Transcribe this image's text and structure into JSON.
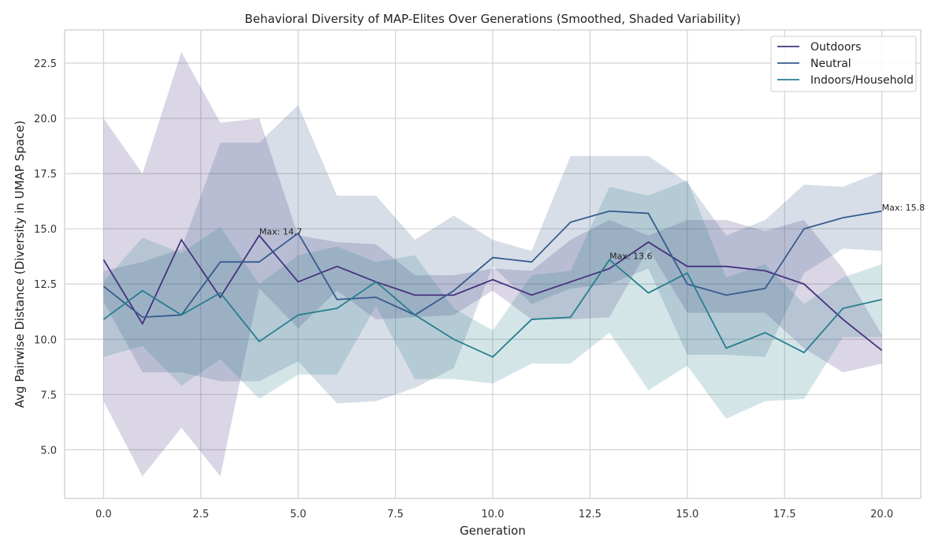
{
  "chart_data": {
    "type": "line",
    "title": "Behavioral Diversity of MAP-Elites Over Generations (Smoothed, Shaded Variability)",
    "xlabel": "Generation",
    "ylabel": "Avg Pairwise Distance (Diversity in UMAP Space)",
    "xlim": [
      -1.0,
      21.0
    ],
    "ylim": [
      2.8,
      24.0
    ],
    "xticks": [
      0.0,
      2.5,
      5.0,
      7.5,
      10.0,
      12.5,
      15.0,
      17.5,
      20.0
    ],
    "xtick_labels": [
      "0.0",
      "2.5",
      "5.0",
      "7.5",
      "10.0",
      "12.5",
      "15.0",
      "17.5",
      "20.0"
    ],
    "yticks": [
      5.0,
      7.5,
      10.0,
      12.5,
      15.0,
      17.5,
      20.0,
      22.5
    ],
    "ytick_labels": [
      "5.0",
      "7.5",
      "10.0",
      "12.5",
      "15.0",
      "17.5",
      "20.0",
      "22.5"
    ],
    "grid": true,
    "legend_position": "top-right",
    "x": [
      0,
      1,
      2,
      3,
      4,
      5,
      6,
      7,
      8,
      9,
      10,
      11,
      12,
      13,
      14,
      15,
      16,
      17,
      18,
      19,
      20
    ],
    "series": [
      {
        "name": "Outdoors",
        "color": "#46327e",
        "values": [
          13.6,
          10.7,
          14.5,
          11.9,
          14.7,
          12.6,
          13.3,
          12.6,
          12.0,
          12.0,
          12.7,
          12.0,
          12.6,
          13.2,
          14.4,
          13.3,
          13.3,
          13.1,
          12.5,
          10.9,
          9.5
        ],
        "upper": [
          20.0,
          17.5,
          23.0,
          19.8,
          20.0,
          14.7,
          14.4,
          14.3,
          12.9,
          12.9,
          13.2,
          13.1,
          14.5,
          15.4,
          14.7,
          15.4,
          15.4,
          14.9,
          15.4,
          13.2,
          10.2
        ],
        "lower": [
          7.2,
          3.8,
          6.0,
          3.8,
          12.3,
          10.5,
          12.2,
          10.9,
          11.0,
          11.1,
          12.2,
          10.9,
          10.9,
          11.0,
          14.1,
          11.2,
          11.2,
          11.2,
          9.6,
          8.5,
          8.9
        ]
      },
      {
        "name": "Neutral",
        "color": "#365c8d",
        "values": [
          12.4,
          11.0,
          11.1,
          13.5,
          13.5,
          14.8,
          11.8,
          11.9,
          11.1,
          12.2,
          13.7,
          13.5,
          15.3,
          15.8,
          15.7,
          12.5,
          12.0,
          12.3,
          15.0,
          15.5,
          15.8
        ],
        "upper": [
          13.1,
          13.5,
          14.1,
          18.9,
          18.9,
          20.6,
          16.5,
          16.5,
          14.5,
          15.6,
          14.5,
          14.0,
          18.3,
          18.3,
          18.3,
          17.1,
          14.7,
          15.4,
          17.0,
          16.9,
          17.6
        ],
        "lower": [
          11.7,
          8.5,
          8.5,
          8.1,
          8.1,
          9.0,
          7.1,
          7.2,
          7.8,
          8.7,
          13.3,
          11.6,
          12.3,
          12.5,
          13.2,
          9.3,
          9.3,
          9.2,
          13.0,
          14.1,
          14.0
        ]
      },
      {
        "name": "Indoors/Household",
        "color": "#277f8e",
        "values": [
          10.9,
          12.2,
          11.1,
          12.1,
          9.9,
          11.1,
          11.4,
          12.6,
          11.1,
          10.0,
          9.2,
          10.9,
          11.0,
          13.6,
          12.1,
          13.0,
          9.6,
          10.3,
          9.4,
          11.4,
          11.8
        ],
        "upper": [
          12.6,
          14.6,
          13.9,
          15.1,
          12.5,
          13.8,
          14.2,
          13.5,
          13.8,
          11.4,
          10.4,
          12.9,
          13.1,
          16.9,
          16.5,
          17.2,
          12.8,
          13.4,
          11.6,
          12.8,
          13.4
        ],
        "lower": [
          9.2,
          9.7,
          7.9,
          9.1,
          7.3,
          8.4,
          8.4,
          11.5,
          8.2,
          8.2,
          8.0,
          8.9,
          8.9,
          10.3,
          7.7,
          8.8,
          6.4,
          7.2,
          7.3,
          10.1,
          10.1
        ]
      }
    ],
    "annotations": [
      {
        "text": "Max: 14.7",
        "x": 4,
        "y": 14.7
      },
      {
        "text": "Max: 13.6",
        "x": 13,
        "y": 13.6
      },
      {
        "text": "Max: 15.8",
        "x": 20,
        "y": 15.8
      }
    ]
  }
}
